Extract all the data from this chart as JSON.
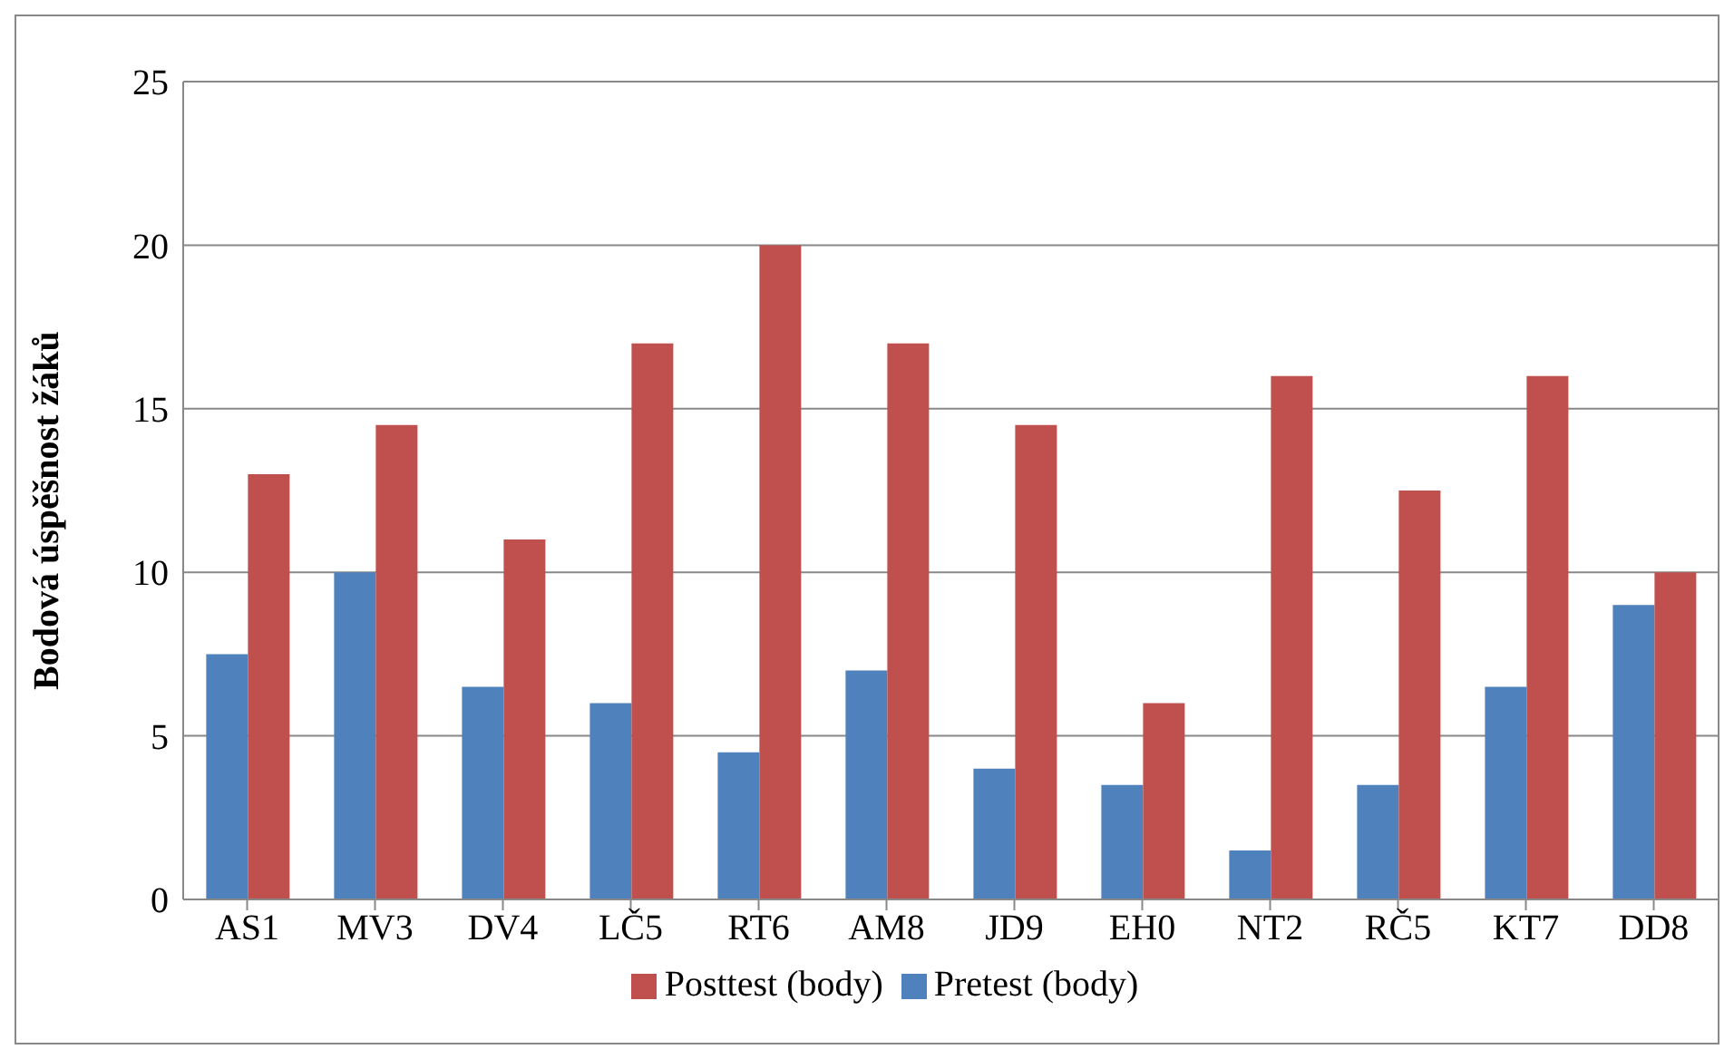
{
  "chart_data": {
    "type": "bar",
    "ylabel": "Bodová úspěšnost žáků",
    "categories": [
      "AS1",
      "MV3",
      "DV4",
      "LČ5",
      "RT6",
      "AM8",
      "JD9",
      "EH0",
      "NT2",
      "RČ5",
      "KT7",
      "DD8"
    ],
    "series": [
      {
        "name": "Pretest (body)",
        "color": "#4f81bd",
        "values": [
          7.5,
          10,
          6.5,
          6,
          4.5,
          7,
          4,
          3.5,
          1.5,
          3.5,
          6.5,
          9
        ]
      },
      {
        "name": "Posttest (body)",
        "color": "#c0504d",
        "values": [
          13,
          14.5,
          11,
          17,
          20,
          17,
          14.5,
          6,
          16,
          12.5,
          16,
          10
        ]
      }
    ],
    "ylim": [
      0,
      25
    ],
    "yticks": [
      0,
      5,
      10,
      15,
      20,
      25
    ],
    "grid": "y",
    "legend": "bottom"
  }
}
